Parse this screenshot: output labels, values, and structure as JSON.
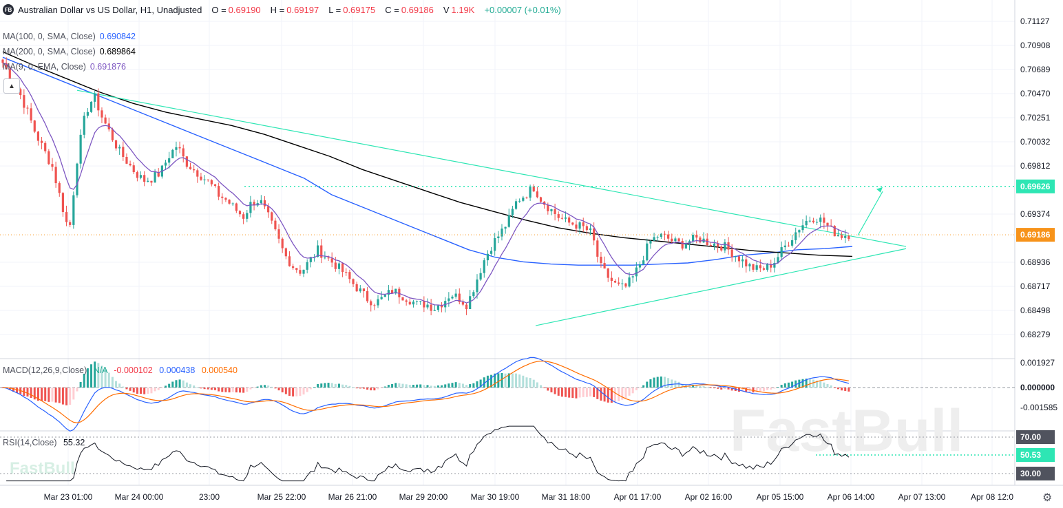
{
  "header": {
    "logo": "FB",
    "symbol": "Australian Dollar vs US Dollar, H1, Unadjusted",
    "o_label": "O =",
    "o_value": "0.69190",
    "h_label": "H =",
    "h_value": "0.69197",
    "l_label": "L =",
    "l_value": "0.69175",
    "c_label": "C =",
    "c_value": "0.69186",
    "v_label": "V",
    "v_value": "1.19K",
    "change": "+0.00007 (+0.01%)"
  },
  "indicators": {
    "ma100": {
      "label": "MA(100, 0, SMA, Close)",
      "value": "0.690842",
      "color": "#2962ff"
    },
    "ma200": {
      "label": "MA(200, 0, SMA, Close)",
      "value": "0.689864",
      "color": "#000000"
    },
    "ema9": {
      "label": "MA(9, 0, EMA, Close)",
      "value": "0.691876",
      "color": "#7e57c2"
    },
    "macd": {
      "label": "MACD(12,26,9,Close)",
      "hist_value": "N/A",
      "macd_value": "-0.000102",
      "signal_value": "0.000438",
      "third_value": "0.000540"
    },
    "rsi": {
      "label": "RSI(14,Close)",
      "value": "55.32"
    }
  },
  "watermark": "FastBull",
  "icons": {
    "settings": "gear-icon",
    "collapse": "triangle-up-icon"
  },
  "colors": {
    "up": "#26a69a",
    "down": "#ef5350",
    "trend": "#2ee6b4",
    "ma100": "#2962ff",
    "ema9": "#7e57c2",
    "macd_line": "#2962ff",
    "signal_line": "#ff6d00",
    "price_tag": "#f7931a",
    "level_tag": "#2ee6b4"
  },
  "chart_data": {
    "type": "candlestick",
    "price_axis_ticks": [
      "0.71127",
      "0.70908",
      "0.70689",
      "0.70470",
      "0.70251",
      "0.70032",
      "0.69812",
      "0.69374",
      "0.68936",
      "0.68717",
      "0.68498",
      "0.68279"
    ],
    "price_levels": {
      "horizontal_level": "0.69626",
      "last_price": "0.69186"
    },
    "macd_axis_ticks": [
      "0.001927",
      "0.000000",
      "-0.001585"
    ],
    "rsi_axis_ticks": [
      "70.00",
      "50.53",
      "30.00"
    ],
    "time_labels": [
      "Mar 23 01:00",
      "Mar 24 00:00",
      "23:00",
      "Mar 25 22:00",
      "Mar 26 21:00",
      "Mar 29 20:00",
      "Mar 30 19:00",
      "Mar 31 18:00",
      "Apr 01 17:00",
      "Apr 02 16:00",
      "Apr 05 15:00",
      "Apr 06 14:00",
      "Apr 07 13:00",
      "Apr 08 12:0"
    ],
    "close_path": [
      0.7075,
      0.706,
      0.7048,
      0.703,
      0.701,
      0.6995,
      0.698,
      0.695,
      0.692,
      0.699,
      0.703,
      0.7045,
      0.7025,
      0.701,
      0.6995,
      0.6985,
      0.6975,
      0.6968,
      0.697,
      0.6975,
      0.699,
      0.7,
      0.6985,
      0.6978,
      0.6972,
      0.6965,
      0.6955,
      0.695,
      0.6942,
      0.6935,
      0.6948,
      0.695,
      0.6935,
      0.6918,
      0.69,
      0.689,
      0.6885,
      0.6895,
      0.6905,
      0.6898,
      0.6892,
      0.6885,
      0.6876,
      0.6868,
      0.686,
      0.6857,
      0.6862,
      0.6868,
      0.6864,
      0.686,
      0.6855,
      0.6856,
      0.6852,
      0.6857,
      0.6865,
      0.6861,
      0.6855,
      0.6875,
      0.6895,
      0.691,
      0.692,
      0.6932,
      0.695,
      0.6955,
      0.6962,
      0.695,
      0.6942,
      0.6935,
      0.693,
      0.6928,
      0.6925,
      0.692,
      0.689,
      0.688,
      0.6872,
      0.687,
      0.688,
      0.6895,
      0.6912,
      0.6918,
      0.6916,
      0.6912,
      0.691,
      0.6914,
      0.6915,
      0.6912,
      0.691,
      0.6908,
      0.6902,
      0.6896,
      0.689,
      0.6887,
      0.6888,
      0.6894,
      0.6905,
      0.6915,
      0.6925,
      0.6932,
      0.6935,
      0.693,
      0.6922,
      0.6918,
      0.6919
    ],
    "ma100_path": [
      0.708,
      0.707,
      0.706,
      0.705,
      0.704,
      0.703,
      0.702,
      0.701,
      0.7,
      0.699,
      0.698,
      0.697,
      0.6955,
      0.6945,
      0.6935,
      0.6925,
      0.6915,
      0.6905,
      0.6898,
      0.6894,
      0.6892,
      0.6891,
      0.6891,
      0.6891,
      0.6892,
      0.6893,
      0.6896,
      0.69,
      0.6902,
      0.6905,
      0.6906,
      0.6908
    ],
    "ma200_path": [
      0.7085,
      0.7072,
      0.706,
      0.7048,
      0.7038,
      0.703,
      0.7024,
      0.7018,
      0.701,
      0.7,
      0.699,
      0.6978,
      0.6968,
      0.6958,
      0.6948,
      0.694,
      0.6932,
      0.6925,
      0.692,
      0.6916,
      0.6913,
      0.691,
      0.6907,
      0.6904,
      0.6902,
      0.69,
      0.6899
    ],
    "trendlines": [
      {
        "from": [
          "Mar 24",
          0.705
        ],
        "to": [
          "Apr 07",
          0.6908
        ],
        "label": "upper"
      },
      {
        "from": [
          "Mar 30 19:00",
          0.6836
        ],
        "to": [
          "Apr 07",
          0.6906
        ],
        "label": "lower"
      }
    ],
    "projection_arrow": {
      "from": 0.6918,
      "to": 0.6962
    },
    "grid": true,
    "legend": "top-left"
  }
}
